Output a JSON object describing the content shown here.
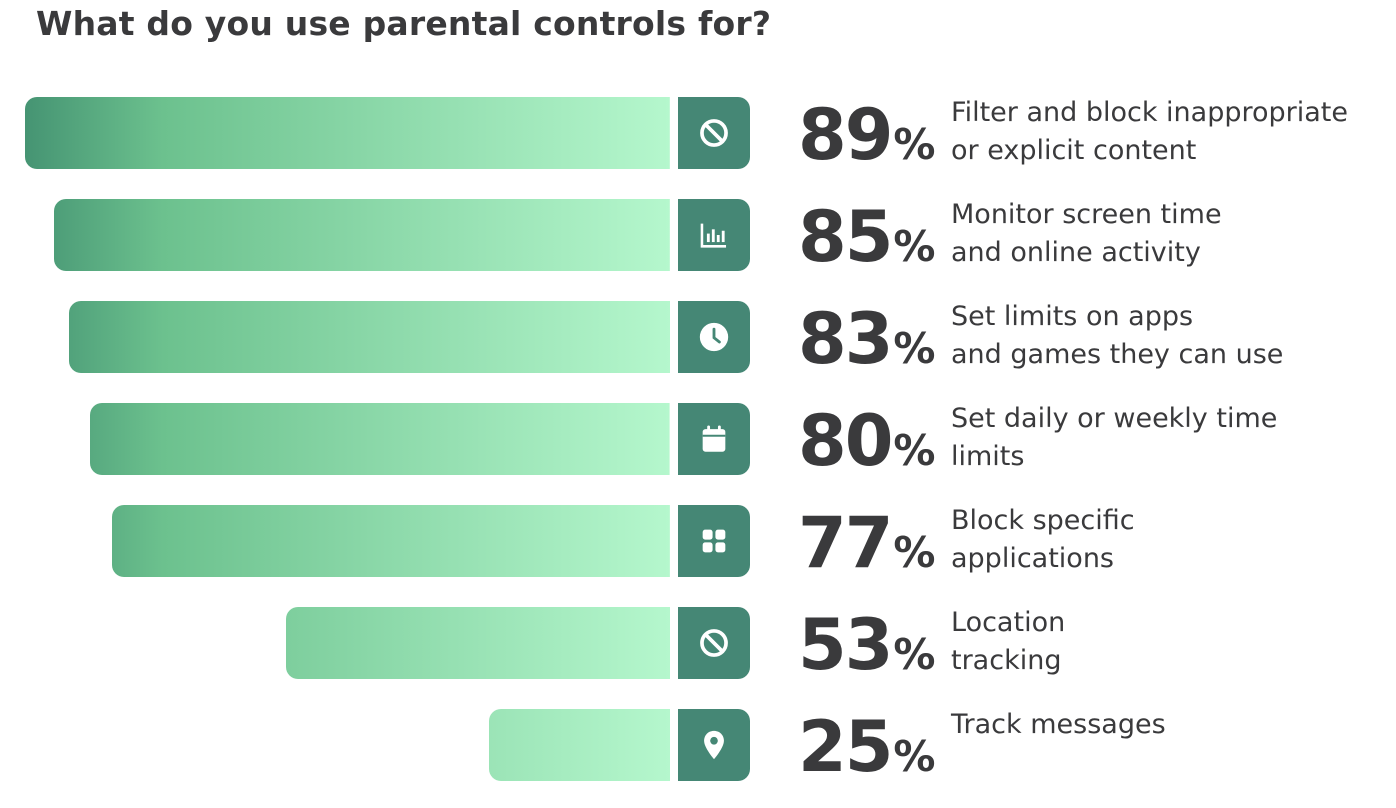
{
  "title": "What do you use parental controls for?",
  "colors": {
    "bar_dark": "#2f7a63",
    "bar_mid": "#6cc18e",
    "bar_light": "#b5f7cd",
    "icon_bg": "#458775",
    "text": "#3a3a3c"
  },
  "chart_data": {
    "type": "bar",
    "orientation": "horizontal",
    "unit": "%",
    "title": "What do you use parental controls for?",
    "categories": [
      "Filter and block inappropriate or explicit content",
      "Monitor screen time and online activity",
      "Set limits on apps and games they can use",
      "Set daily or weekly time limits",
      "Block specific applications",
      "Location tracking",
      "Track messages"
    ],
    "values": [
      89,
      85,
      83,
      80,
      77,
      53,
      25
    ],
    "xlim": [
      0,
      100
    ]
  },
  "rows": [
    {
      "value": "89",
      "sign": "%",
      "lines": [
        "Filter and block inappropriate",
        "or explicit content"
      ],
      "icon": "block-icon"
    },
    {
      "value": "85",
      "sign": "%",
      "lines": [
        "Monitor screen time",
        "and online activity"
      ],
      "icon": "bar-chart-icon"
    },
    {
      "value": "83",
      "sign": "%",
      "lines": [
        "Set limits on apps",
        "and games they can use"
      ],
      "icon": "clock-icon"
    },
    {
      "value": "80",
      "sign": "%",
      "lines": [
        "Set daily or weekly time",
        "limits"
      ],
      "icon": "calendar-icon"
    },
    {
      "value": "77",
      "sign": "%",
      "lines": [
        "Block specific",
        "applications"
      ],
      "icon": "apps-grid-icon"
    },
    {
      "value": "53",
      "sign": "%",
      "lines": [
        "Location",
        "tracking"
      ],
      "icon": "block-icon"
    },
    {
      "value": "25",
      "sign": "%",
      "lines": [
        "Track messages"
      ],
      "icon": "location-pin-icon"
    }
  ]
}
